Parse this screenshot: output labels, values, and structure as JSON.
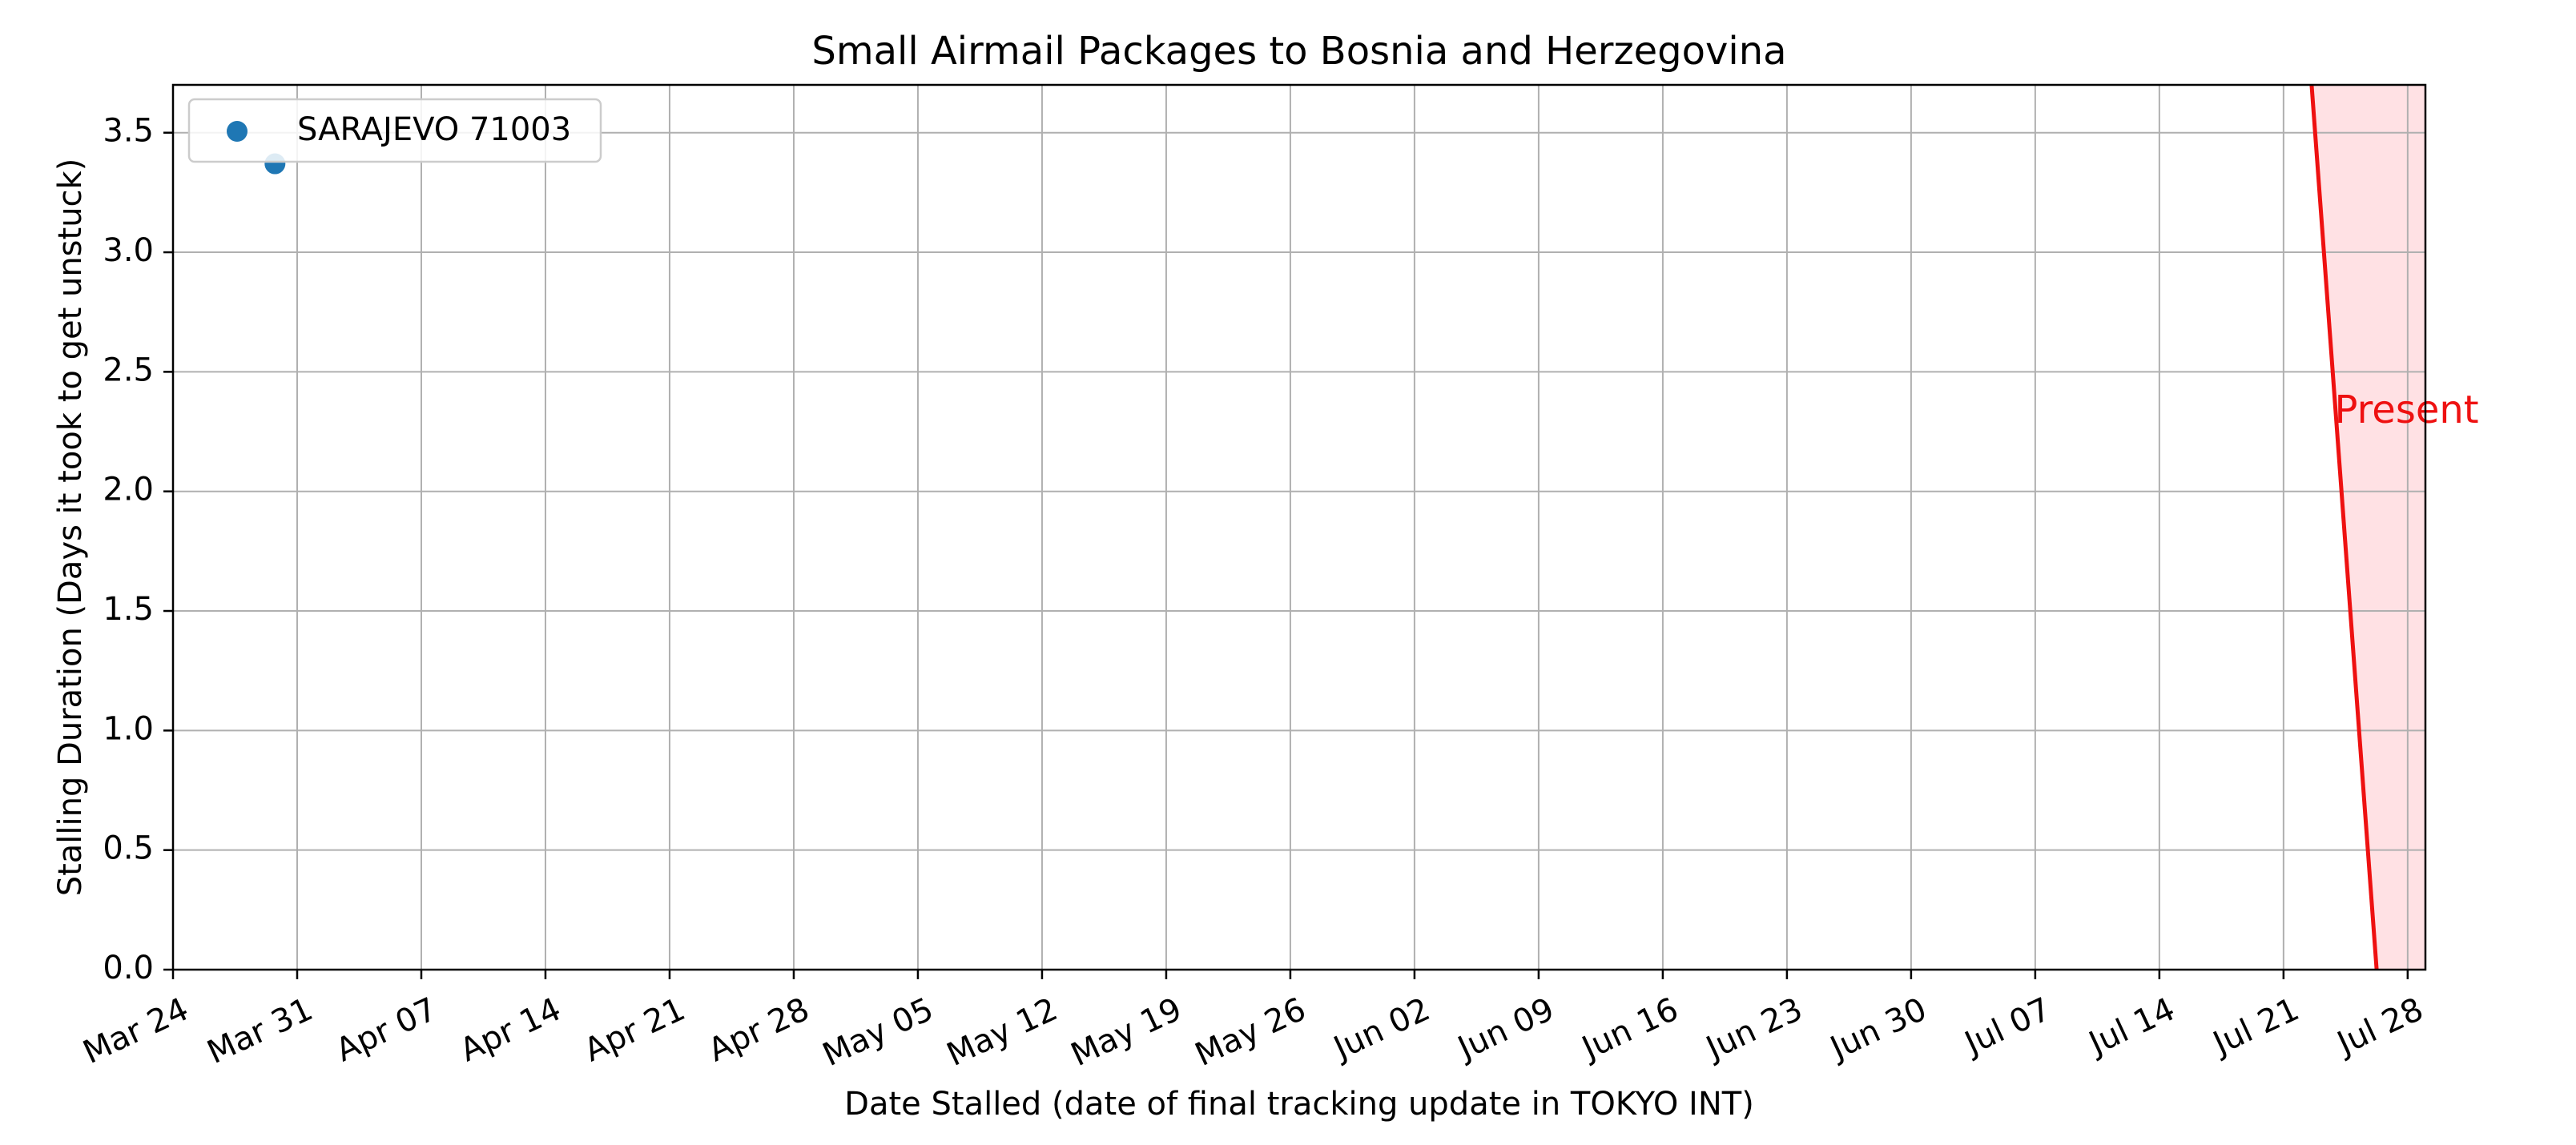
{
  "chart_data": {
    "type": "scatter",
    "title": "Small Airmail Packages to Bosnia and Herzegovina",
    "xlabel": "Date Stalled (date of final tracking update in TOKYO INT)",
    "ylabel": "Stalling Duration (Days it took to get unstuck)",
    "xlim": [
      "2023-03-24",
      "2023-07-29"
    ],
    "ylim": [
      0,
      3.7
    ],
    "x_ticks": [
      "2023-03-24",
      "2023-03-31",
      "2023-04-07",
      "2023-04-14",
      "2023-04-21",
      "2023-04-28",
      "2023-05-05",
      "2023-05-12",
      "2023-05-19",
      "2023-05-26",
      "2023-06-02",
      "2023-06-09",
      "2023-06-16",
      "2023-06-23",
      "2023-06-30",
      "2023-07-07",
      "2023-07-14",
      "2023-07-21",
      "2023-07-28"
    ],
    "x_tick_labels": [
      "Mar 24",
      "Mar 31",
      "Apr 07",
      "Apr 14",
      "Apr 21",
      "Apr 28",
      "May 05",
      "May 12",
      "May 19",
      "May 26",
      "Jun 02",
      "Jun 09",
      "Jun 16",
      "Jun 23",
      "Jun 30",
      "Jul 07",
      "Jul 14",
      "Jul 21",
      "Jul 28"
    ],
    "y_ticks": [
      0.0,
      0.5,
      1.0,
      1.5,
      2.0,
      2.5,
      3.0,
      3.5
    ],
    "y_tick_labels": [
      "0.0",
      "0.5",
      "1.0",
      "1.5",
      "2.0",
      "2.5",
      "3.0",
      "3.5"
    ],
    "grid": true,
    "legend_position": "top-left",
    "series": [
      {
        "name": "SARAJEVO 71003",
        "color": "#1f77b4",
        "points": [
          {
            "x": "2023-03-29T18:00",
            "y": 3.37
          }
        ]
      }
    ],
    "present_marker": {
      "label": "Present",
      "color": "#ee1111",
      "shade_color": "#ffe1e4",
      "line_top": {
        "x": "2023-07-22T14:00",
        "y": 3.7
      },
      "line_bottom": {
        "x": "2023-07-26T06:00",
        "y": 0.0
      },
      "shade_end": "2023-07-29",
      "label_at": {
        "x": "2023-07-23T21:00",
        "y": 2.33
      }
    }
  }
}
